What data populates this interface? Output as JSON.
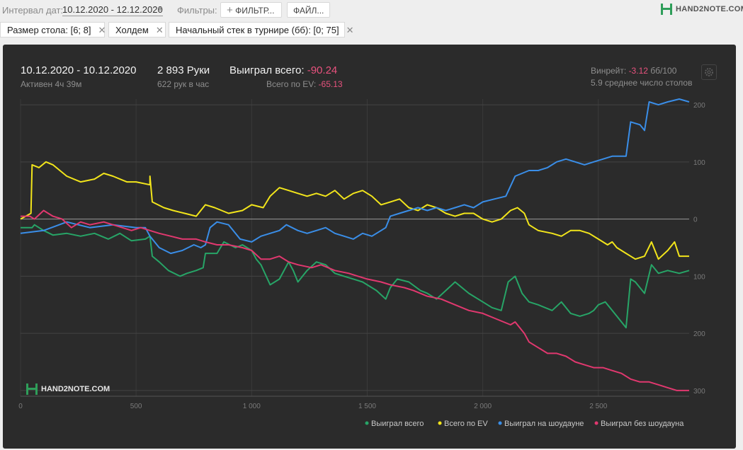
{
  "topbar": {
    "date_label": "Интервал дат:",
    "date_value": "10.12.2020 - 12.12.2020",
    "filters_label": "Фильтры:",
    "filter_button": "ФИЛЬТР...",
    "file_button": "ФАЙЛ...",
    "logo": "HAND2NOTE.COM"
  },
  "chips": [
    {
      "label": "Размер стола: [6; 8]"
    },
    {
      "label": "Холдем"
    },
    {
      "label": "Начальный стек в турнире (бб): [0; 75]"
    }
  ],
  "stats": {
    "range": "10.12.2020 - 10.12.2020",
    "active": "Активен 4ч 39м",
    "hands": "2 893 Руки",
    "hands_per_hour": "622 рук в час",
    "won_label": "Выиграл всего:",
    "won_value": "-90.24",
    "ev_label": "Всего по EV:",
    "ev_value": "-65.13",
    "winrate_label": "Винрейт:",
    "winrate_value": "-3.12",
    "winrate_unit": "бб/100",
    "tables": "5.9 среднее число столов"
  },
  "watermark": "HAND2NOTE.COM",
  "colors": {
    "green": "#27a567",
    "yellow": "#f2e51b",
    "blue": "#3a8ee8",
    "pink": "#e1386f"
  },
  "chart_data": {
    "type": "line",
    "xlim": [
      0,
      2893
    ],
    "ylim": [
      -310,
      210
    ],
    "x_ticks": [
      {
        "v": 0,
        "label": "0"
      },
      {
        "v": 500,
        "label": "500"
      },
      {
        "v": 1000,
        "label": "1 000"
      },
      {
        "v": 1500,
        "label": "1 500"
      },
      {
        "v": 2000,
        "label": "2 000"
      },
      {
        "v": 2500,
        "label": "2 500"
      }
    ],
    "y_ticks": [
      {
        "v": 200,
        "label": "200"
      },
      {
        "v": 100,
        "label": "100"
      },
      {
        "v": 0,
        "label": "0"
      },
      {
        "v": -100,
        "label": "100"
      },
      {
        "v": -200,
        "label": "200"
      },
      {
        "v": -300,
        "label": "300"
      }
    ],
    "series": [
      {
        "name": "Выиграл всего",
        "color": "#27a567",
        "points": [
          [
            0,
            -15
          ],
          [
            50,
            -15
          ],
          [
            60,
            -10
          ],
          [
            100,
            -20
          ],
          [
            140,
            -28
          ],
          [
            200,
            -25
          ],
          [
            260,
            -30
          ],
          [
            320,
            -25
          ],
          [
            380,
            -35
          ],
          [
            430,
            -25
          ],
          [
            480,
            -38
          ],
          [
            540,
            -35
          ],
          [
            560,
            -30
          ],
          [
            570,
            -65
          ],
          [
            600,
            -75
          ],
          [
            640,
            -90
          ],
          [
            690,
            -100
          ],
          [
            720,
            -95
          ],
          [
            760,
            -90
          ],
          [
            790,
            -85
          ],
          [
            800,
            -60
          ],
          [
            850,
            -60
          ],
          [
            880,
            -40
          ],
          [
            930,
            -50
          ],
          [
            960,
            -45
          ],
          [
            1000,
            -55
          ],
          [
            1020,
            -70
          ],
          [
            1040,
            -80
          ],
          [
            1080,
            -115
          ],
          [
            1120,
            -105
          ],
          [
            1160,
            -75
          ],
          [
            1180,
            -90
          ],
          [
            1200,
            -110
          ],
          [
            1240,
            -90
          ],
          [
            1280,
            -75
          ],
          [
            1320,
            -80
          ],
          [
            1360,
            -95
          ],
          [
            1400,
            -100
          ],
          [
            1440,
            -105
          ],
          [
            1480,
            -110
          ],
          [
            1540,
            -125
          ],
          [
            1580,
            -140
          ],
          [
            1600,
            -120
          ],
          [
            1630,
            -105
          ],
          [
            1680,
            -110
          ],
          [
            1730,
            -125
          ],
          [
            1760,
            -130
          ],
          [
            1800,
            -140
          ],
          [
            1840,
            -125
          ],
          [
            1880,
            -110
          ],
          [
            1940,
            -130
          ],
          [
            2000,
            -145
          ],
          [
            2040,
            -155
          ],
          [
            2080,
            -160
          ],
          [
            2110,
            -110
          ],
          [
            2140,
            -100
          ],
          [
            2170,
            -130
          ],
          [
            2200,
            -145
          ],
          [
            2240,
            -150
          ],
          [
            2300,
            -160
          ],
          [
            2340,
            -145
          ],
          [
            2380,
            -165
          ],
          [
            2420,
            -170
          ],
          [
            2460,
            -165
          ],
          [
            2480,
            -160
          ],
          [
            2500,
            -150
          ],
          [
            2530,
            -145
          ],
          [
            2550,
            -155
          ],
          [
            2580,
            -170
          ],
          [
            2600,
            -180
          ],
          [
            2620,
            -190
          ],
          [
            2640,
            -105
          ],
          [
            2660,
            -110
          ],
          [
            2700,
            -130
          ],
          [
            2730,
            -80
          ],
          [
            2760,
            -95
          ],
          [
            2800,
            -90
          ],
          [
            2850,
            -95
          ],
          [
            2893,
            -90
          ]
        ]
      },
      {
        "name": "Всего по EV",
        "color": "#f2e51b",
        "points": [
          [
            0,
            0
          ],
          [
            45,
            10
          ],
          [
            50,
            95
          ],
          [
            80,
            90
          ],
          [
            110,
            100
          ],
          [
            140,
            95
          ],
          [
            200,
            75
          ],
          [
            260,
            65
          ],
          [
            320,
            70
          ],
          [
            360,
            80
          ],
          [
            400,
            75
          ],
          [
            460,
            65
          ],
          [
            500,
            65
          ],
          [
            560,
            60
          ],
          [
            560,
            75
          ],
          [
            570,
            30
          ],
          [
            620,
            20
          ],
          [
            660,
            15
          ],
          [
            710,
            10
          ],
          [
            760,
            5
          ],
          [
            800,
            25
          ],
          [
            840,
            20
          ],
          [
            900,
            10
          ],
          [
            960,
            15
          ],
          [
            1000,
            25
          ],
          [
            1050,
            20
          ],
          [
            1080,
            40
          ],
          [
            1120,
            55
          ],
          [
            1160,
            50
          ],
          [
            1200,
            45
          ],
          [
            1240,
            40
          ],
          [
            1280,
            45
          ],
          [
            1320,
            40
          ],
          [
            1360,
            50
          ],
          [
            1400,
            35
          ],
          [
            1440,
            45
          ],
          [
            1480,
            50
          ],
          [
            1520,
            40
          ],
          [
            1560,
            25
          ],
          [
            1600,
            30
          ],
          [
            1640,
            35
          ],
          [
            1680,
            20
          ],
          [
            1720,
            15
          ],
          [
            1760,
            25
          ],
          [
            1800,
            20
          ],
          [
            1840,
            10
          ],
          [
            1880,
            5
          ],
          [
            1920,
            10
          ],
          [
            1960,
            10
          ],
          [
            2000,
            0
          ],
          [
            2040,
            -5
          ],
          [
            2080,
            0
          ],
          [
            2120,
            15
          ],
          [
            2150,
            20
          ],
          [
            2180,
            10
          ],
          [
            2200,
            -10
          ],
          [
            2240,
            -20
          ],
          [
            2300,
            -25
          ],
          [
            2340,
            -30
          ],
          [
            2380,
            -20
          ],
          [
            2420,
            -20
          ],
          [
            2460,
            -25
          ],
          [
            2500,
            -35
          ],
          [
            2540,
            -45
          ],
          [
            2560,
            -40
          ],
          [
            2580,
            -50
          ],
          [
            2620,
            -60
          ],
          [
            2660,
            -70
          ],
          [
            2700,
            -65
          ],
          [
            2730,
            -40
          ],
          [
            2760,
            -70
          ],
          [
            2800,
            -55
          ],
          [
            2830,
            -40
          ],
          [
            2850,
            -65
          ],
          [
            2893,
            -65
          ]
        ]
      },
      {
        "name": "Выиграл на шоудауне",
        "color": "#3a8ee8",
        "points": [
          [
            0,
            -25
          ],
          [
            100,
            -20
          ],
          [
            200,
            -5
          ],
          [
            300,
            -15
          ],
          [
            400,
            -10
          ],
          [
            500,
            -15
          ],
          [
            540,
            -15
          ],
          [
            560,
            -30
          ],
          [
            600,
            -50
          ],
          [
            650,
            -60
          ],
          [
            700,
            -55
          ],
          [
            750,
            -45
          ],
          [
            780,
            -50
          ],
          [
            800,
            -45
          ],
          [
            820,
            -15
          ],
          [
            850,
            -5
          ],
          [
            900,
            -10
          ],
          [
            920,
            -20
          ],
          [
            950,
            -35
          ],
          [
            1000,
            -40
          ],
          [
            1040,
            -30
          ],
          [
            1080,
            -25
          ],
          [
            1120,
            -20
          ],
          [
            1150,
            -10
          ],
          [
            1200,
            -20
          ],
          [
            1240,
            -25
          ],
          [
            1280,
            -20
          ],
          [
            1320,
            -15
          ],
          [
            1360,
            -25
          ],
          [
            1400,
            -30
          ],
          [
            1440,
            -35
          ],
          [
            1480,
            -25
          ],
          [
            1520,
            -30
          ],
          [
            1560,
            -20
          ],
          [
            1580,
            -15
          ],
          [
            1600,
            5
          ],
          [
            1640,
            10
          ],
          [
            1680,
            15
          ],
          [
            1720,
            20
          ],
          [
            1760,
            15
          ],
          [
            1800,
            20
          ],
          [
            1840,
            15
          ],
          [
            1880,
            20
          ],
          [
            1920,
            25
          ],
          [
            1960,
            20
          ],
          [
            2000,
            30
          ],
          [
            2050,
            35
          ],
          [
            2100,
            40
          ],
          [
            2140,
            75
          ],
          [
            2200,
            85
          ],
          [
            2240,
            85
          ],
          [
            2280,
            90
          ],
          [
            2320,
            100
          ],
          [
            2360,
            105
          ],
          [
            2400,
            100
          ],
          [
            2440,
            95
          ],
          [
            2480,
            100
          ],
          [
            2520,
            105
          ],
          [
            2560,
            110
          ],
          [
            2620,
            110
          ],
          [
            2640,
            170
          ],
          [
            2680,
            165
          ],
          [
            2700,
            155
          ],
          [
            2720,
            205
          ],
          [
            2760,
            200
          ],
          [
            2800,
            205
          ],
          [
            2850,
            210
          ],
          [
            2893,
            205
          ]
        ]
      },
      {
        "name": "Выиграл без шоудауна",
        "color": "#e1386f",
        "points": [
          [
            0,
            5
          ],
          [
            40,
            5
          ],
          [
            60,
            0
          ],
          [
            100,
            15
          ],
          [
            140,
            5
          ],
          [
            180,
            0
          ],
          [
            220,
            -15
          ],
          [
            260,
            -5
          ],
          [
            300,
            -10
          ],
          [
            360,
            -5
          ],
          [
            400,
            -10
          ],
          [
            440,
            -15
          ],
          [
            480,
            -20
          ],
          [
            520,
            -15
          ],
          [
            560,
            -20
          ],
          [
            600,
            -25
          ],
          [
            650,
            -30
          ],
          [
            700,
            -35
          ],
          [
            760,
            -35
          ],
          [
            800,
            -40
          ],
          [
            850,
            -45
          ],
          [
            900,
            -45
          ],
          [
            960,
            -50
          ],
          [
            1000,
            -55
          ],
          [
            1040,
            -70
          ],
          [
            1080,
            -70
          ],
          [
            1120,
            -65
          ],
          [
            1160,
            -75
          ],
          [
            1200,
            -80
          ],
          [
            1260,
            -85
          ],
          [
            1300,
            -80
          ],
          [
            1360,
            -90
          ],
          [
            1420,
            -95
          ],
          [
            1460,
            -100
          ],
          [
            1500,
            -105
          ],
          [
            1560,
            -110
          ],
          [
            1600,
            -115
          ],
          [
            1660,
            -120
          ],
          [
            1700,
            -125
          ],
          [
            1760,
            -135
          ],
          [
            1820,
            -140
          ],
          [
            1880,
            -150
          ],
          [
            1940,
            -160
          ],
          [
            2000,
            -165
          ],
          [
            2060,
            -175
          ],
          [
            2120,
            -185
          ],
          [
            2140,
            -180
          ],
          [
            2180,
            -200
          ],
          [
            2200,
            -215
          ],
          [
            2240,
            -225
          ],
          [
            2280,
            -235
          ],
          [
            2320,
            -235
          ],
          [
            2360,
            -240
          ],
          [
            2400,
            -250
          ],
          [
            2440,
            -255
          ],
          [
            2480,
            -260
          ],
          [
            2520,
            -260
          ],
          [
            2560,
            -265
          ],
          [
            2600,
            -270
          ],
          [
            2640,
            -280
          ],
          [
            2680,
            -285
          ],
          [
            2720,
            -285
          ],
          [
            2760,
            -290
          ],
          [
            2800,
            -295
          ],
          [
            2840,
            -300
          ],
          [
            2893,
            -300
          ]
        ]
      }
    ]
  }
}
